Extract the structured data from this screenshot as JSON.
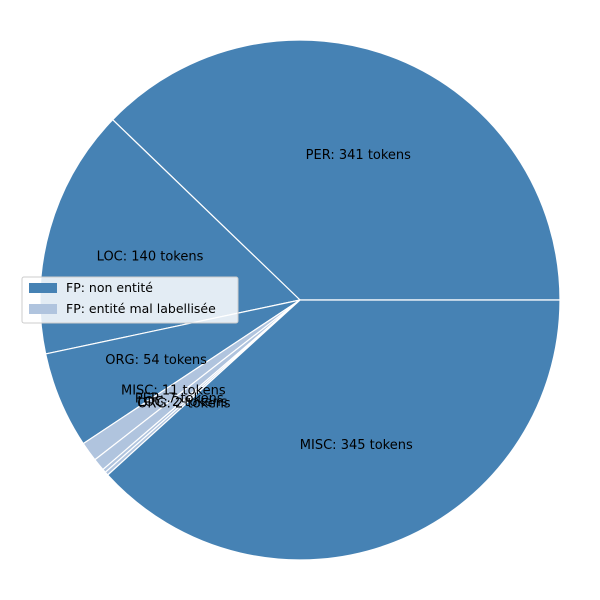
{
  "chart_data": {
    "type": "pie",
    "start_angle_deg": 0,
    "direction": "counterclockwise",
    "legend": {
      "placement": "center-left",
      "entries": [
        {
          "label": "FP: non entité",
          "color": "#4682b4"
        },
        {
          "label": "FP: entité mal labellisée",
          "color": "#b0c4de"
        }
      ]
    },
    "slices": [
      {
        "label": "PER: 341 tokens",
        "value": 341,
        "group": "FP: non entité",
        "color": "#4682b4"
      },
      {
        "label": "LOC: 140 tokens",
        "value": 140,
        "group": "FP: non entité",
        "color": "#4682b4"
      },
      {
        "label": "ORG: 54 tokens",
        "value": 54,
        "group": "FP: non entité",
        "color": "#4682b4"
      },
      {
        "label": "MISC: 11 tokens",
        "value": 11,
        "group": "FP: entité mal labellisée",
        "color": "#b0c4de"
      },
      {
        "label": "PER: 7 tokens",
        "value": 7,
        "group": "FP: entité mal labellisée",
        "color": "#b0c4de"
      },
      {
        "label": "LOC: 2 tokens",
        "value": 2,
        "group": "FP: entité mal labellisée",
        "color": "#b0c4de"
      },
      {
        "label": "ORG: 2 tokens",
        "value": 2,
        "group": "FP: entité mal labellisée",
        "color": "#b0c4de"
      },
      {
        "label": "MISC: 345 tokens",
        "value": 345,
        "group": "FP: non entité",
        "color": "#4682b4"
      }
    ]
  }
}
